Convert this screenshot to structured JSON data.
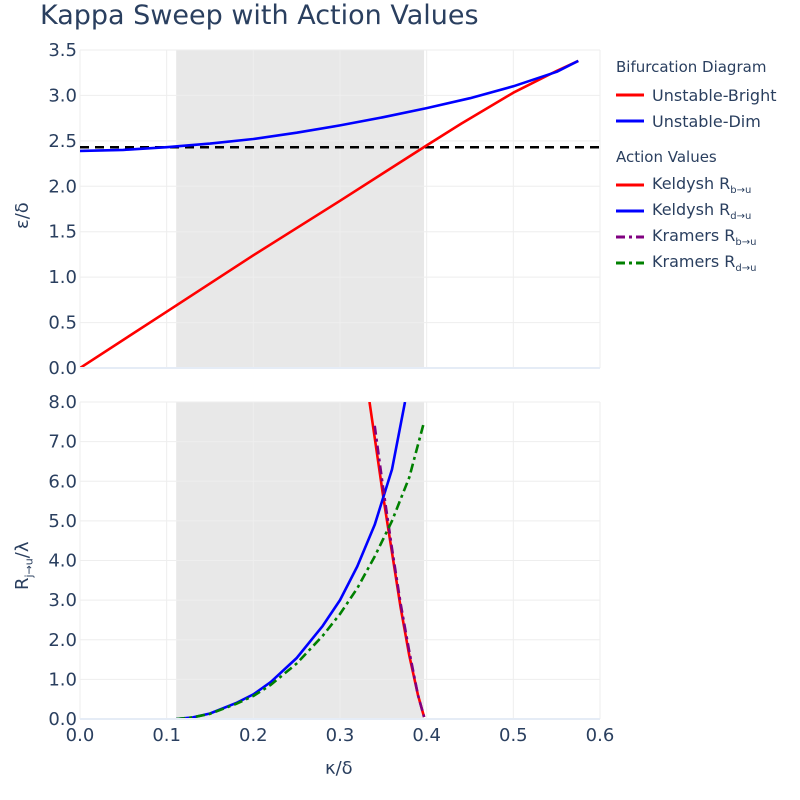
{
  "title": "Kappa Sweep with Action Values",
  "legend": {
    "groups": [
      {
        "title": "Bifurcation Diagram",
        "items": [
          {
            "base": "Unstable-Bright",
            "sub": "",
            "color": "#ff0000",
            "dash": "solid"
          },
          {
            "base": "Unstable-Dim",
            "sub": "",
            "color": "#0000ff",
            "dash": "solid"
          }
        ]
      },
      {
        "title": "Action Values",
        "items": [
          {
            "base": "Keldysh R",
            "sub": "b→u",
            "color": "#ff0000",
            "dash": "solid"
          },
          {
            "base": "Keldysh R",
            "sub": "d→u",
            "color": "#0000ff",
            "dash": "solid"
          },
          {
            "base": "Kramers R",
            "sub": "b→u",
            "color": "#800080",
            "dash": "dashdot"
          },
          {
            "base": "Kramers R",
            "sub": "d→u",
            "color": "#008000",
            "dash": "dashdot"
          }
        ]
      }
    ]
  },
  "chart_data": [
    {
      "type": "line",
      "xlabel": "",
      "ylabel": "ε/δ",
      "xlim": [
        0,
        0.6
      ],
      "ylim": [
        0,
        3.5
      ],
      "xticks": [
        0,
        0.1,
        0.2,
        0.3,
        0.4,
        0.5,
        0.6
      ],
      "yticks": [
        "0.0",
        "0.5",
        "1.0",
        "1.5",
        "2.0",
        "2.5",
        "3.0",
        "3.5"
      ],
      "shaded_region": {
        "x0": 0.111,
        "x1": 0.397,
        "color": "#e8e8e8"
      },
      "hline": {
        "y": 2.43,
        "color": "#000000",
        "dash": "dash"
      },
      "series": [
        {
          "name": "Unstable-Bright",
          "color": "#ff0000",
          "dash": "solid",
          "x": [
            0.0,
            0.1,
            0.2,
            0.3,
            0.4,
            0.44,
            0.5,
            0.55,
            0.575
          ],
          "y": [
            0.0,
            0.62,
            1.24,
            1.84,
            2.45,
            2.69,
            3.03,
            3.27,
            3.38
          ]
        },
        {
          "name": "Unstable-Dim",
          "color": "#0000ff",
          "dash": "solid",
          "x": [
            0.0,
            0.05,
            0.1,
            0.15,
            0.2,
            0.25,
            0.3,
            0.35,
            0.4,
            0.45,
            0.5,
            0.55,
            0.575
          ],
          "y": [
            2.39,
            2.4,
            2.43,
            2.47,
            2.52,
            2.59,
            2.67,
            2.76,
            2.86,
            2.97,
            3.1,
            3.26,
            3.38
          ]
        }
      ]
    },
    {
      "type": "line",
      "xlabel": "κ/δ",
      "ylabel": "R",
      "ylabel_sub": "j→u",
      "ylabel_suffix": "/λ",
      "xlim": [
        0,
        0.6
      ],
      "ylim": [
        0,
        8
      ],
      "xticks": [
        "0.0",
        "0.1",
        "0.2",
        "0.3",
        "0.4",
        "0.5",
        "0.6"
      ],
      "yticks": [
        "0.0",
        "1.0",
        "2.0",
        "3.0",
        "4.0",
        "5.0",
        "6.0",
        "7.0",
        "8.0"
      ],
      "shaded_region": {
        "x0": 0.111,
        "x1": 0.397,
        "color": "#e8e8e8"
      },
      "series": [
        {
          "name": "Keldysh R b→u",
          "color": "#ff0000",
          "dash": "solid",
          "x": [
            0.334,
            0.34,
            0.35,
            0.36,
            0.37,
            0.38,
            0.39,
            0.397
          ],
          "y": [
            8.0,
            7.1,
            5.6,
            4.2,
            2.8,
            1.6,
            0.6,
            0.05
          ]
        },
        {
          "name": "Keldysh R d→u",
          "color": "#0000ff",
          "dash": "solid",
          "x": [
            0.111,
            0.13,
            0.15,
            0.18,
            0.2,
            0.22,
            0.25,
            0.28,
            0.3,
            0.32,
            0.34,
            0.36,
            0.375
          ],
          "y": [
            0.0,
            0.04,
            0.14,
            0.4,
            0.62,
            0.93,
            1.54,
            2.35,
            3.0,
            3.85,
            4.9,
            6.3,
            8.0
          ]
        },
        {
          "name": "Kramers R b→u",
          "color": "#800080",
          "dash": "dashdot",
          "x": [
            0.34,
            0.35,
            0.36,
            0.37,
            0.38,
            0.39,
            0.397
          ],
          "y": [
            7.4,
            5.8,
            4.3,
            2.9,
            1.7,
            0.6,
            0.05
          ]
        },
        {
          "name": "Kramers R d→u",
          "color": "#008000",
          "dash": "dashdot",
          "x": [
            0.111,
            0.13,
            0.15,
            0.18,
            0.2,
            0.22,
            0.25,
            0.28,
            0.3,
            0.32,
            0.34,
            0.36,
            0.38,
            0.397
          ],
          "y": [
            0.0,
            0.04,
            0.13,
            0.38,
            0.58,
            0.86,
            1.4,
            2.1,
            2.65,
            3.3,
            4.1,
            5.0,
            6.1,
            7.5
          ]
        }
      ]
    }
  ]
}
